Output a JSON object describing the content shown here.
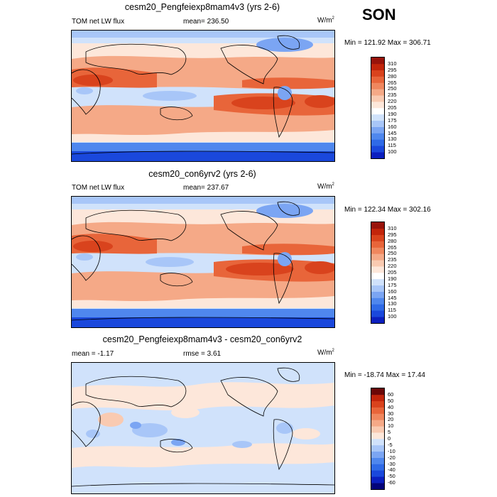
{
  "season": "SON",
  "colors": {
    "abs_scale": [
      "#03037a",
      "#0b1fbf",
      "#1a48dc",
      "#2f6ae7",
      "#4f87ee",
      "#7ba5f3",
      "#a8c6f8",
      "#d0e2fb",
      "#ffffff",
      "#fde7da",
      "#f9cab1",
      "#f5a987",
      "#f0875e",
      "#e8653a",
      "#d9431d",
      "#c2250b",
      "#98130b",
      "#6b0707"
    ],
    "diff_scale": [
      "#03037a",
      "#0b1fbf",
      "#1a48dc",
      "#2f6ae7",
      "#4f87ee",
      "#7ba5f3",
      "#a8c6f8",
      "#d0e2fb",
      "#fde7da",
      "#f9cab1",
      "#f5a987",
      "#f0875e",
      "#e8653a",
      "#d9431d",
      "#c2250b",
      "#6b0707"
    ]
  },
  "chart_data": [
    {
      "type": "heatmap",
      "title": "cesm20_Pengfeiexp8mam4v3 (yrs 2-6)",
      "variable": "TOM net LW flux",
      "mean_text": "mean= 236.50",
      "units": "W/m",
      "units_sup": "2",
      "minmax_text": "Min = 121.92 Max = 306.71",
      "min": 121.92,
      "max": 306.71,
      "mean": 236.5,
      "colorbar_levels": [
        "310",
        "295",
        "280",
        "265",
        "250",
        "235",
        "220",
        "205",
        "190",
        "175",
        "160",
        "145",
        "130",
        "115",
        "100"
      ]
    },
    {
      "type": "heatmap",
      "title": "cesm20_con6yrv2 (yrs 2-6)",
      "variable": "TOM net LW flux",
      "mean_text": "mean= 237.67",
      "units": "W/m",
      "units_sup": "2",
      "minmax_text": "Min = 122.34 Max = 302.16",
      "min": 122.34,
      "max": 302.16,
      "mean": 237.67,
      "colorbar_levels": [
        "310",
        "295",
        "280",
        "265",
        "250",
        "235",
        "220",
        "205",
        "190",
        "175",
        "160",
        "145",
        "130",
        "115",
        "100"
      ]
    },
    {
      "type": "heatmap",
      "title": "cesm20_Pengfeiexp8mam4v3 - cesm20_con6yrv2",
      "mean_text": "mean =  -1.17",
      "rmse_text": "rmse =   3.61",
      "units": "W/m",
      "units_sup": "2",
      "minmax_text": "Min = -18.74 Max =  17.44",
      "min": -18.74,
      "max": 17.44,
      "mean": -1.17,
      "rmse": 3.61,
      "colorbar_levels": [
        "60",
        "50",
        "40",
        "30",
        "20",
        "10",
        "5",
        "0",
        "-5",
        "-10",
        "-20",
        "-30",
        "-40",
        "-50",
        "-60"
      ]
    }
  ]
}
